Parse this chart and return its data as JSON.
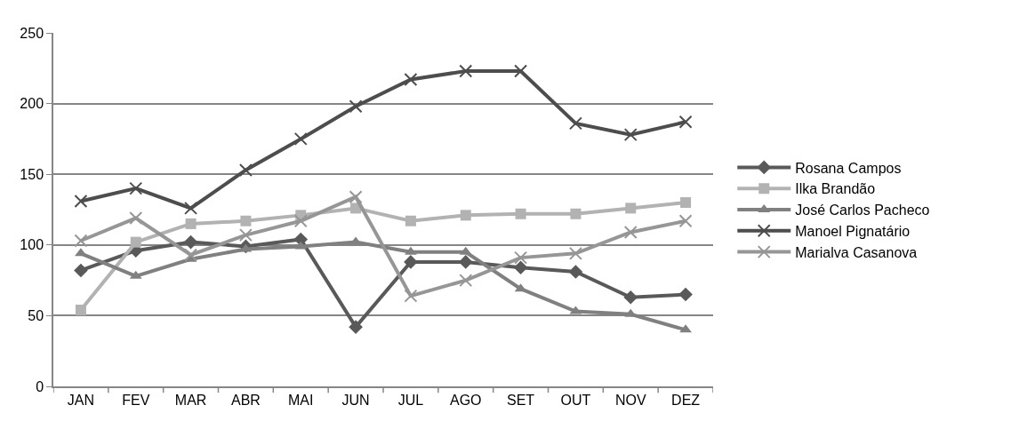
{
  "chart_data": {
    "type": "line",
    "categories": [
      "JAN",
      "FEV",
      "MAR",
      "ABR",
      "MAI",
      "JUN",
      "JUL",
      "AGO",
      "SET",
      "OUT",
      "NOV",
      "DEZ"
    ],
    "series": [
      {
        "name": "Rosana Campos",
        "color": "#595959",
        "marker": "diamond",
        "values": [
          82,
          96,
          102,
          99,
          104,
          42,
          88,
          88,
          84,
          81,
          63,
          65
        ]
      },
      {
        "name": "Ilka Brandão",
        "color": "#b2b2b2",
        "marker": "square",
        "values": [
          54,
          102,
          115,
          117,
          121,
          126,
          117,
          121,
          122,
          122,
          126,
          130
        ]
      },
      {
        "name": "José Carlos Pacheco",
        "color": "#808080",
        "marker": "triangle",
        "values": [
          94,
          78,
          90,
          97,
          99,
          102,
          95,
          95,
          69,
          53,
          51,
          40
        ]
      },
      {
        "name": "Manoel Pignatário",
        "color": "#4d4d4d",
        "marker": "cross",
        "values": [
          131,
          140,
          126,
          153,
          175,
          198,
          217,
          223,
          223,
          186,
          178,
          187
        ]
      },
      {
        "name": "Marialva Casanova",
        "color": "#969696",
        "marker": "cross",
        "values": [
          103,
          119,
          93,
          107,
          117,
          134,
          64,
          75,
          91,
          94,
          109,
          117
        ]
      }
    ],
    "ylim": [
      0,
      250
    ],
    "yticks": [
      0,
      50,
      100,
      150,
      200,
      250
    ],
    "grid": "y",
    "legend": "right",
    "line_style": "solid"
  }
}
